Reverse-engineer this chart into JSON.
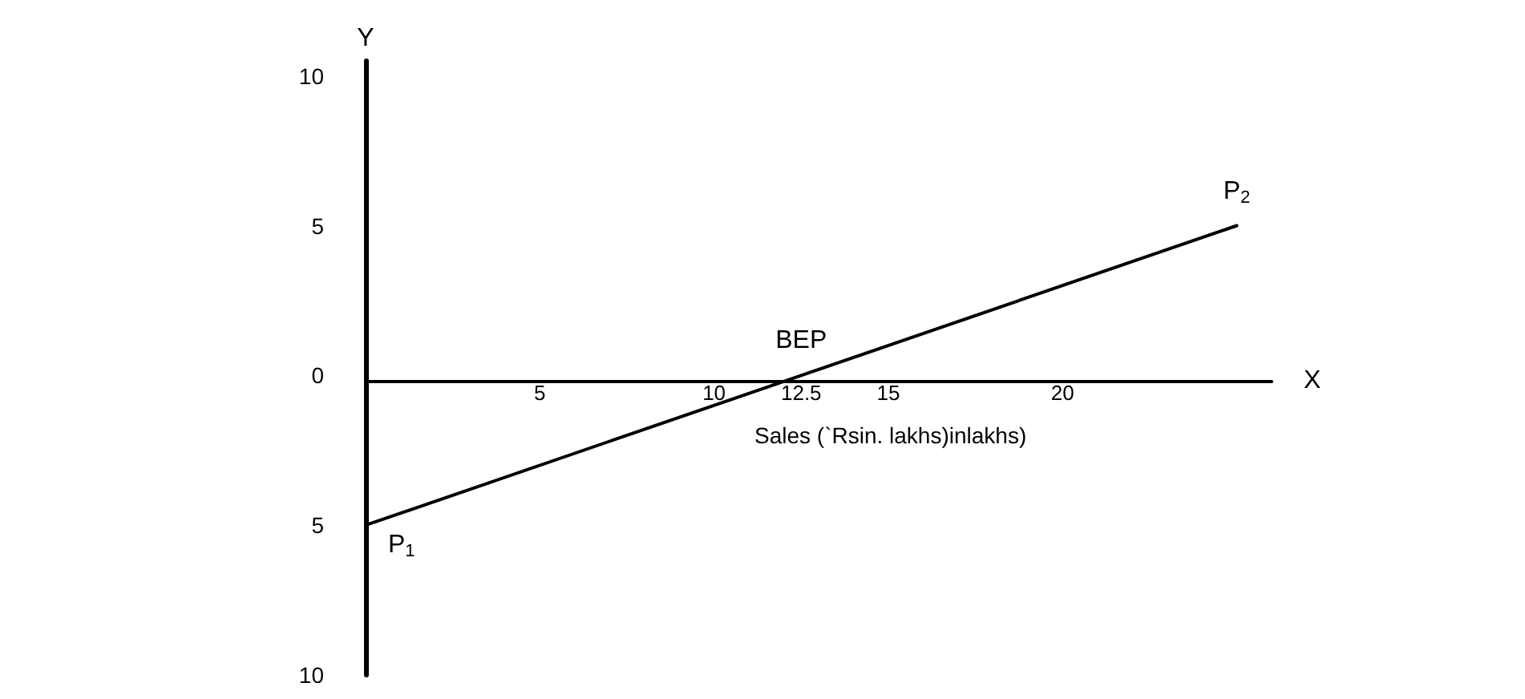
{
  "chart_data": {
    "type": "line",
    "xlabel": "X",
    "ylabel": "Y",
    "x": [
      0,
      12.5,
      25
    ],
    "series": [
      {
        "color": "#000000",
        "values": [
          -5,
          0,
          5
        ]
      }
    ],
    "xlim": [
      0,
      26
    ],
    "xticks": [
      5,
      10,
      12.5,
      15,
      20
    ],
    "ylim": [
      -10,
      10.5
    ],
    "yticks": [
      10,
      5,
      0,
      {
        "value": -5,
        "label": "5"
      },
      {
        "value": -10,
        "label": "10"
      }
    ],
    "grid": false,
    "marker": "none",
    "line_style": "solid",
    "annotations": [
      {
        "text": "BEP",
        "x": 12.5,
        "y": 0
      },
      {
        "text": "P$_{1}$",
        "x": 0,
        "y": -5
      },
      {
        "text": "P$_{2}$",
        "x": 25,
        "y": 5
      },
      "Sales (`Rsin. lakhs)inlakhs)"
    ]
  }
}
